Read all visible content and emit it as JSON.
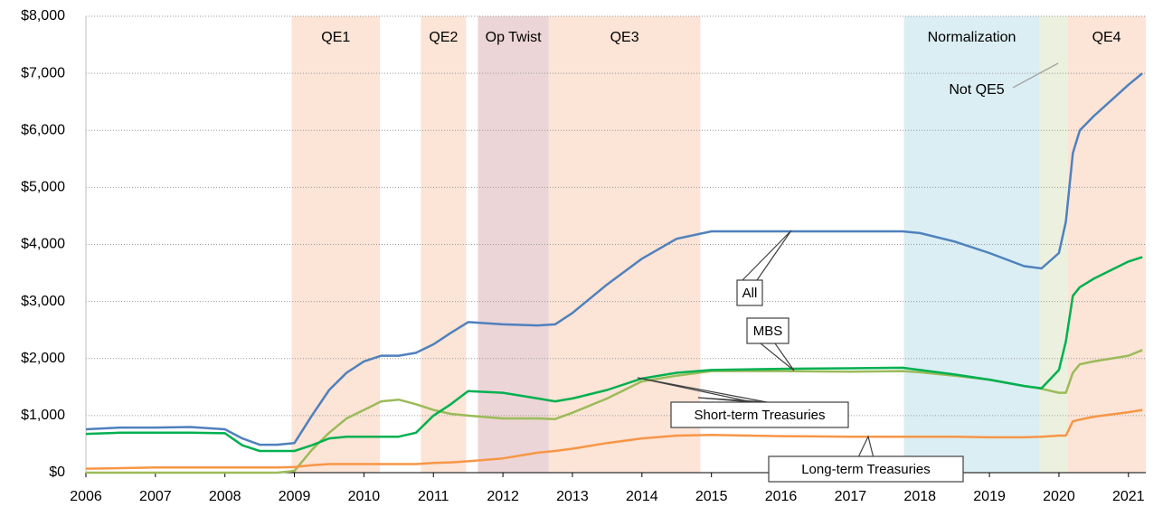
{
  "chart_data": {
    "type": "line",
    "x": [
      2006,
      2006.5,
      2007,
      2007.5,
      2008,
      2008.25,
      2008.5,
      2008.75,
      2009,
      2009.25,
      2009.5,
      2009.75,
      2010,
      2010.25,
      2010.5,
      2010.75,
      2011,
      2011.25,
      2011.5,
      2012,
      2012.5,
      2012.75,
      2013,
      2013.5,
      2014,
      2014.5,
      2015,
      2016,
      2017,
      2017.75,
      2018,
      2018.5,
      2019,
      2019.5,
      2019.75,
      2020,
      2020.1,
      2020.2,
      2020.3,
      2020.5,
      2021,
      2021.2
    ],
    "series": [
      {
        "name": "All",
        "color": "#4f81bd",
        "values": [
          760,
          790,
          790,
          800,
          760,
          600,
          490,
          490,
          520,
          1000,
          1450,
          1750,
          1950,
          2050,
          2050,
          2100,
          2250,
          2450,
          2640,
          2600,
          2580,
          2600,
          2800,
          3300,
          3750,
          4100,
          4230,
          4230,
          4230,
          4230,
          4200,
          4050,
          3850,
          3620,
          3580,
          3850,
          4400,
          5600,
          6000,
          6250,
          6800,
          7000
        ]
      },
      {
        "name": "MBS",
        "color": "#9bbb59",
        "values": [
          0,
          0,
          0,
          0,
          0,
          0,
          0,
          0,
          30,
          400,
          700,
          950,
          1100,
          1250,
          1280,
          1200,
          1100,
          1030,
          1000,
          950,
          950,
          940,
          1050,
          1300,
          1600,
          1700,
          1780,
          1780,
          1770,
          1780,
          1760,
          1700,
          1630,
          1520,
          1470,
          1400,
          1400,
          1750,
          1900,
          1950,
          2050,
          2150
        ]
      },
      {
        "name": "Short-term Treasuries",
        "color": "#00b050",
        "values": [
          680,
          700,
          700,
          700,
          690,
          480,
          380,
          380,
          380,
          480,
          600,
          630,
          630,
          630,
          630,
          700,
          1000,
          1200,
          1430,
          1400,
          1300,
          1250,
          1300,
          1450,
          1650,
          1750,
          1800,
          1820,
          1830,
          1840,
          1800,
          1720,
          1630,
          1520,
          1480,
          1800,
          2300,
          3100,
          3250,
          3400,
          3700,
          3780
        ]
      },
      {
        "name": "Long-term Treasuries",
        "color": "#f79646",
        "values": [
          70,
          80,
          90,
          90,
          90,
          90,
          90,
          90,
          100,
          130,
          150,
          150,
          150,
          150,
          150,
          150,
          170,
          180,
          200,
          250,
          350,
          380,
          420,
          520,
          600,
          650,
          660,
          640,
          630,
          630,
          630,
          630,
          620,
          620,
          630,
          650,
          650,
          900,
          930,
          980,
          1060,
          1100
        ]
      }
    ],
    "regions": [
      {
        "label": "QE1",
        "start": 2008.96,
        "end": 2010.23,
        "color": "#fce4d6"
      },
      {
        "label": "QE2",
        "start": 2010.82,
        "end": 2011.47,
        "color": "#fce4d6"
      },
      {
        "label": "Op Twist",
        "start": 2011.64,
        "end": 2012.66,
        "color": "#ecd5d6"
      },
      {
        "label": "QE3",
        "start": 2012.66,
        "end": 2014.84,
        "color": "#fce4d6"
      },
      {
        "label": "Normalization",
        "start": 2017.77,
        "end": 2019.72,
        "color": "#daeef3"
      },
      {
        "label": "Not QE5",
        "start": 2019.72,
        "end": 2020.12,
        "color": "#ebf1de"
      },
      {
        "label": "QE4",
        "start": 2020.12,
        "end": 2021.25,
        "color": "#fce4d6"
      }
    ],
    "xlim": [
      2006,
      2021.25
    ],
    "xticks": [
      2006,
      2007,
      2008,
      2009,
      2010,
      2011,
      2012,
      2013,
      2014,
      2015,
      2016,
      2017,
      2018,
      2019,
      2020,
      2021
    ],
    "ylim": [
      0,
      8000
    ],
    "yticks": [
      {
        "value": 0,
        "label": "$0"
      },
      {
        "value": 1000,
        "label": "$1,000"
      },
      {
        "value": 2000,
        "label": "$2,000"
      },
      {
        "value": 3000,
        "label": "$3,000"
      },
      {
        "value": 4000,
        "label": "$4,000"
      },
      {
        "value": 5000,
        "label": "$5,000"
      },
      {
        "value": 6000,
        "label": "$6,000"
      },
      {
        "value": 7000,
        "label": "$7,000"
      },
      {
        "value": 8000,
        "label": "$8,000"
      }
    ],
    "grid": true
  }
}
